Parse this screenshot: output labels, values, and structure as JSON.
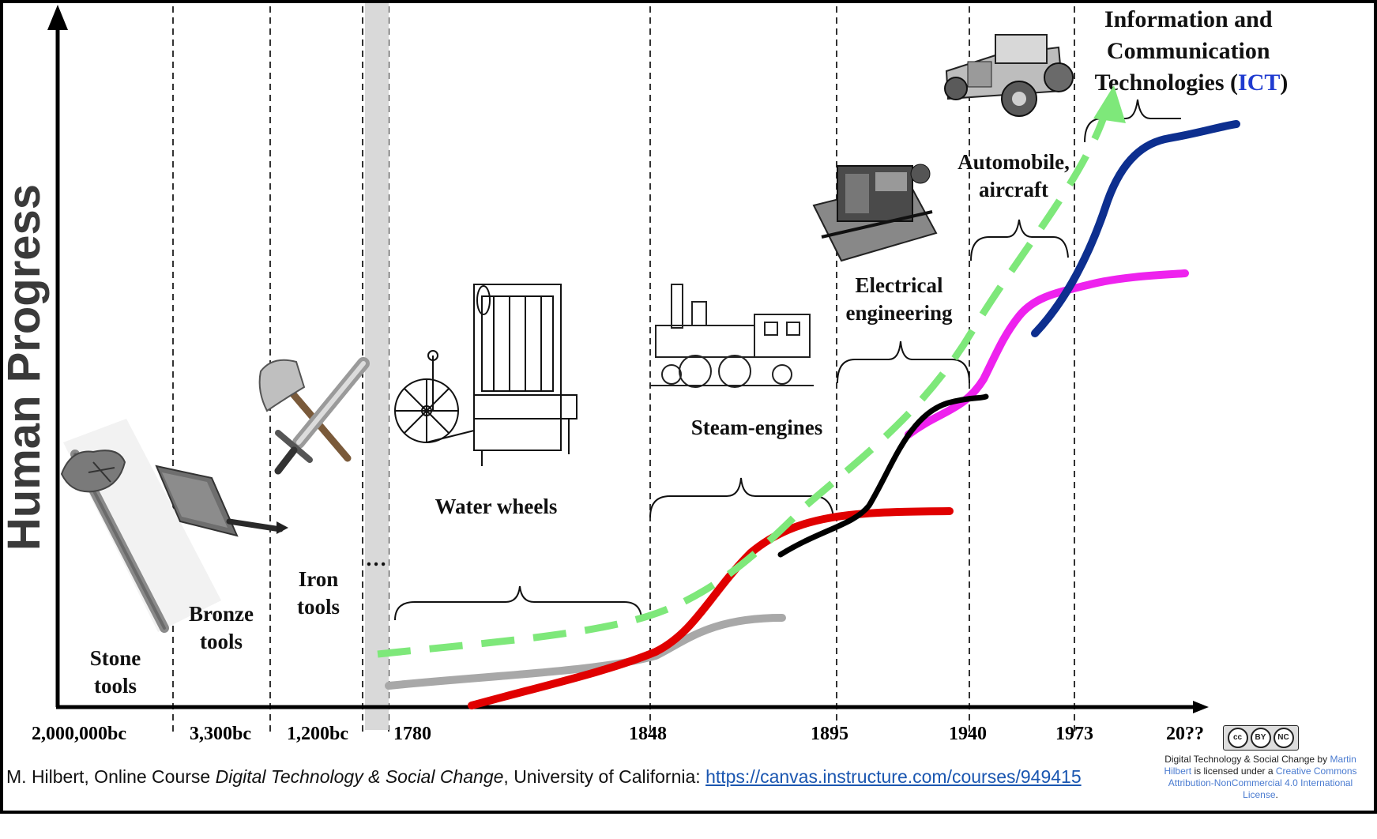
{
  "y_axis_label": "Human Progress",
  "x_ticks": [
    "2,000,000bc",
    "3,300bc",
    "1,200bc",
    "1780",
    "1848",
    "1895",
    "1940",
    "1973",
    "20??"
  ],
  "era_labels": {
    "stone": [
      "Stone",
      "tools"
    ],
    "bronze": [
      "Bronze",
      "tools"
    ],
    "iron": [
      "Iron",
      "tools"
    ],
    "ellipsis": "…",
    "water": "Water wheels",
    "steam": "Steam-engines",
    "electrical": [
      "Electrical",
      "engineering"
    ],
    "automobile": [
      "Automobile,",
      "aircraft"
    ],
    "ict": {
      "line1": "Information and",
      "line2": "Communication",
      "line3_prefix": "Technologies (",
      "line3_acronym": "ICT",
      "line3_suffix": ")"
    }
  },
  "colors": {
    "trend": "#7ee87a",
    "water": "#a8a8a8",
    "steam": "#e00000",
    "electrical": "#000000",
    "automobile": "#ee22ee",
    "ict": "#0d2f8f",
    "ict_acronym": "#1f3bd0"
  },
  "images": {
    "stone": "stone-axe",
    "bronze": "bronze-axe",
    "iron": "iron-axe-and-sword",
    "water": "water-frame-spinning-machine",
    "steam": "steam-locomotive",
    "electrical": "electric-generator",
    "automobile": "vintage-automobile"
  },
  "caption": {
    "prefix": "M. Hilbert, Online Course ",
    "course": "Digital Technology & Social Change",
    "middle": ", University of California: ",
    "link": "https://canvas.instructure.com/courses/949415"
  },
  "license": {
    "badge": [
      "cc",
      "BY",
      "NC"
    ],
    "text1": "Digital Technology & Social Change by ",
    "author": "Martin Hilbert",
    "text2": " is licensed under a ",
    "license_name": "Creative Commons Attribution-NonCommercial 4.0 International License",
    "text3": "."
  }
}
